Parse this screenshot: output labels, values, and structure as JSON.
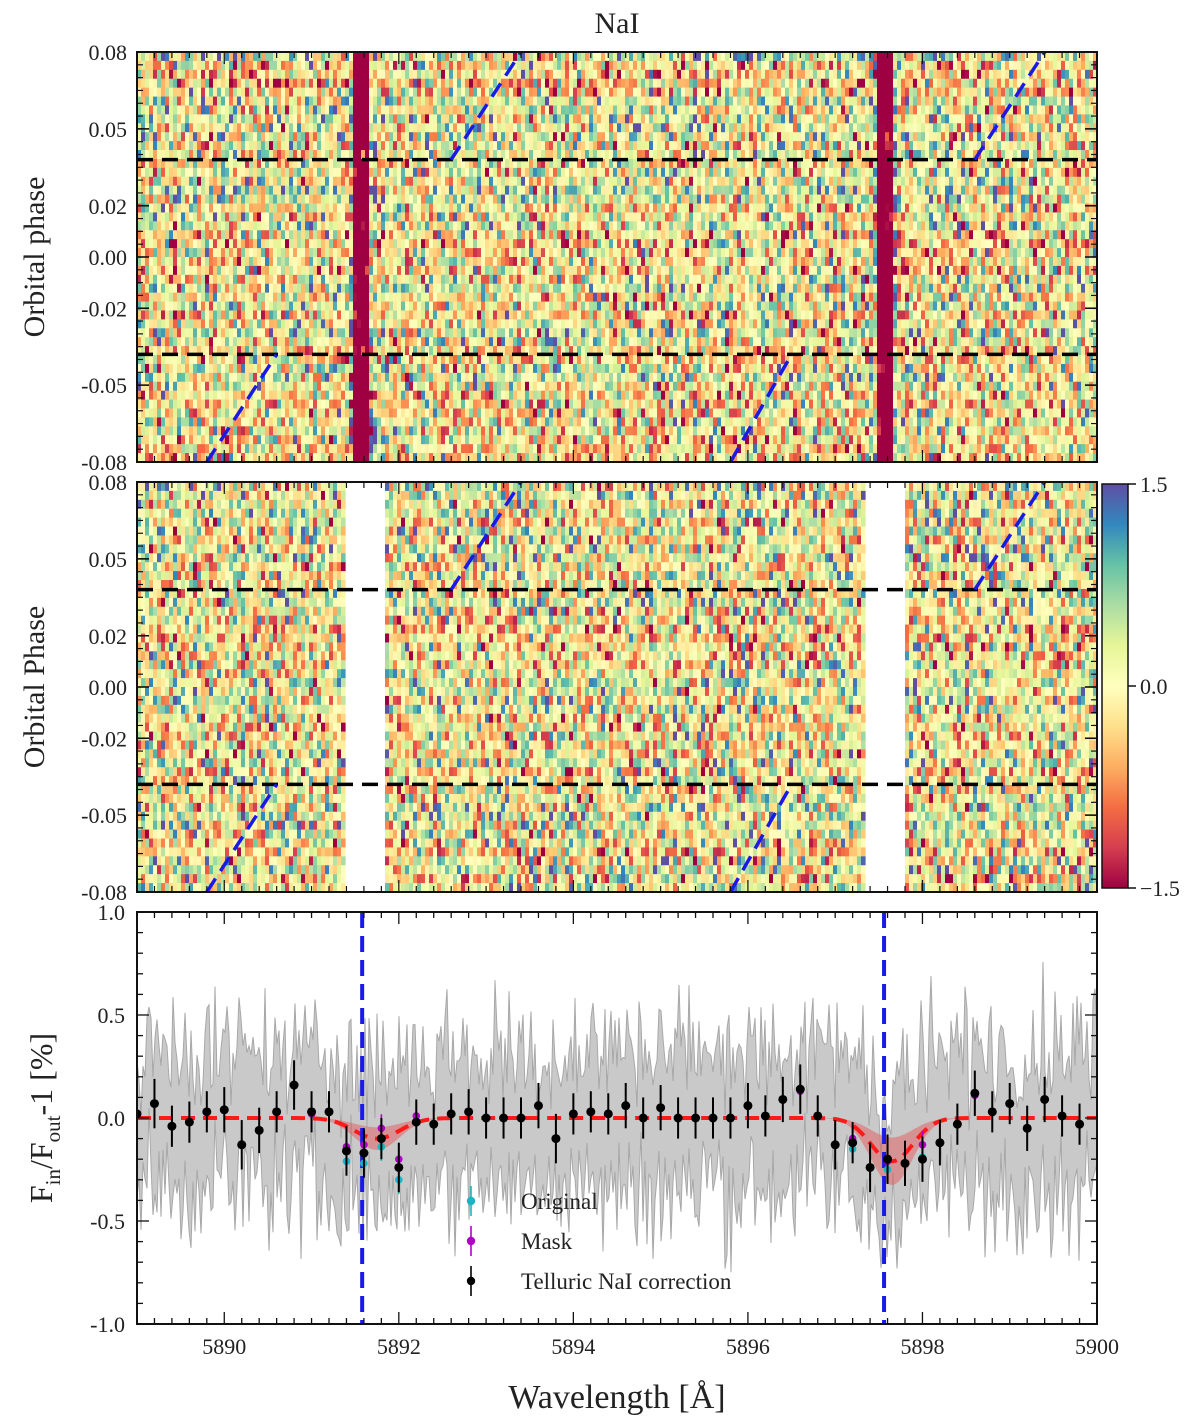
{
  "figure": {
    "title": "NaI"
  },
  "chart_data": [
    {
      "type": "heatmap",
      "panel": "top",
      "ylabel": "Orbital phase",
      "xlim": [
        5889,
        5900
      ],
      "ylim": [
        -0.08,
        0.08
      ],
      "yticks": [
        0.08,
        0.05,
        0.02,
        0.0,
        -0.02,
        -0.05,
        -0.08
      ],
      "ytick_labels": [
        "0.08",
        "0.05",
        "0.02",
        "0.00",
        "-0.02",
        "-0.05",
        "-0.08"
      ],
      "transit_limits": [
        0.038,
        -0.038
      ],
      "absorption_lines": [
        5891.58,
        5897.56
      ],
      "planet_trace_segments": [
        {
          "x": [
            5889.8,
            5890.6
          ],
          "y": [
            -0.08,
            -0.038
          ]
        },
        {
          "x": [
            5892.6,
            5893.4
          ],
          "y": [
            0.038,
            0.08
          ]
        },
        {
          "x": [
            5895.8,
            5896.5
          ],
          "y": [
            -0.08,
            -0.038
          ]
        },
        {
          "x": [
            5898.6,
            5899.4
          ],
          "y": [
            0.038,
            0.08
          ]
        }
      ],
      "color_range": [
        -1.5,
        1.5
      ]
    },
    {
      "type": "heatmap",
      "panel": "middle",
      "ylabel": "Orbital Phase",
      "xlim": [
        5889,
        5900
      ],
      "ylim": [
        -0.08,
        0.08
      ],
      "yticks": [
        0.08,
        0.05,
        0.02,
        0.0,
        -0.02,
        -0.05,
        -0.08
      ],
      "ytick_labels": [
        "0.08",
        "0.05",
        "0.02",
        "0.00",
        "-0.02",
        "-0.05",
        "-0.08"
      ],
      "transit_limits": [
        0.038,
        -0.038
      ],
      "masked_ranges": [
        [
          5891.4,
          5891.85
        ],
        [
          5897.35,
          5897.8
        ]
      ],
      "planet_trace_segments": [
        {
          "x": [
            5889.8,
            5890.6
          ],
          "y": [
            -0.08,
            -0.038
          ]
        },
        {
          "x": [
            5892.6,
            5893.4
          ],
          "y": [
            0.038,
            0.08
          ]
        },
        {
          "x": [
            5895.8,
            5896.5
          ],
          "y": [
            -0.08,
            -0.038
          ]
        },
        {
          "x": [
            5898.6,
            5899.4
          ],
          "y": [
            0.038,
            0.08
          ]
        }
      ],
      "colorbar": {
        "range": [
          -1.5,
          1.5
        ],
        "ticks": [
          1.5,
          0.0,
          -1.5
        ],
        "tick_labels": [
          "1.5",
          "0.0",
          "−1.5"
        ],
        "colors": [
          "#9e0142",
          "#d53e4f",
          "#f46d43",
          "#fdae61",
          "#fee08b",
          "#ffffbf",
          "#e6f598",
          "#abdda4",
          "#66c2a5",
          "#3288bd",
          "#5e4fa2"
        ]
      }
    },
    {
      "type": "scatter",
      "panel": "bottom",
      "xlabel": "Wavelength [Å]",
      "ylabel_main": "F",
      "ylabel_sub1": "in",
      "ylabel_mid": "/F",
      "ylabel_sub2": "out",
      "ylabel_tail": "-1 [%]",
      "xlim": [
        5889,
        5900
      ],
      "ylim": [
        -1.0,
        1.0
      ],
      "xticks": [
        5890,
        5892,
        5894,
        5896,
        5898,
        5900
      ],
      "xtick_labels": [
        "5890",
        "5892",
        "5894",
        "5896",
        "5898",
        "5900"
      ],
      "yticks": [
        1.0,
        0.5,
        0.0,
        -0.5,
        -1.0
      ],
      "ytick_labels": [
        "1.0",
        "0.5",
        "0.0",
        "-0.5",
        "-1.0"
      ],
      "vlines": [
        5891.58,
        5897.56
      ],
      "model": {
        "centers": [
          5891.75,
          5897.65
        ],
        "depths": [
          0.1,
          0.21
        ],
        "sigmas": [
          0.26,
          0.24
        ],
        "band_scale": 0.55
      },
      "series": [
        {
          "name": "Telluric NaI correction",
          "color": "#000000",
          "x": [
            5889.0,
            5889.2,
            5889.4,
            5889.6,
            5889.8,
            5890.0,
            5890.2,
            5890.4,
            5890.6,
            5890.8,
            5891.0,
            5891.2,
            5891.4,
            5891.6,
            5891.8,
            5892.0,
            5892.2,
            5892.4,
            5892.6,
            5892.8,
            5893.0,
            5893.2,
            5893.4,
            5893.6,
            5893.8,
            5894.0,
            5894.2,
            5894.4,
            5894.6,
            5894.8,
            5895.0,
            5895.2,
            5895.4,
            5895.6,
            5895.8,
            5896.0,
            5896.2,
            5896.4,
            5896.6,
            5896.8,
            5897.0,
            5897.2,
            5897.4,
            5897.6,
            5897.8,
            5898.0,
            5898.2,
            5898.4,
            5898.6,
            5898.8,
            5899.0,
            5899.2,
            5899.4,
            5899.6,
            5899.8
          ],
          "y": [
            0.02,
            0.07,
            -0.04,
            -0.02,
            0.03,
            0.04,
            -0.13,
            -0.06,
            0.03,
            0.16,
            0.03,
            0.03,
            -0.16,
            -0.17,
            -0.1,
            -0.24,
            -0.02,
            -0.03,
            0.02,
            0.03,
            0.0,
            0.0,
            0.0,
            0.06,
            -0.1,
            0.02,
            0.03,
            0.02,
            0.06,
            0.0,
            0.05,
            0.0,
            0.0,
            0.0,
            0.0,
            0.06,
            0.01,
            0.09,
            0.14,
            0.01,
            -0.13,
            -0.12,
            -0.24,
            -0.2,
            -0.22,
            -0.2,
            -0.12,
            -0.03,
            0.12,
            0.03,
            0.07,
            -0.05,
            0.09,
            0.01,
            -0.03
          ],
          "yerr": [
            0.1,
            0.12,
            0.1,
            0.1,
            0.1,
            0.11,
            0.12,
            0.11,
            0.1,
            0.12,
            0.1,
            0.1,
            0.12,
            0.12,
            0.1,
            0.12,
            0.11,
            0.1,
            0.1,
            0.11,
            0.1,
            0.1,
            0.1,
            0.11,
            0.12,
            0.1,
            0.1,
            0.1,
            0.11,
            0.1,
            0.11,
            0.1,
            0.1,
            0.1,
            0.1,
            0.11,
            0.1,
            0.11,
            0.12,
            0.1,
            0.12,
            0.1,
            0.12,
            0.12,
            0.11,
            0.11,
            0.11,
            0.1,
            0.11,
            0.1,
            0.1,
            0.11,
            0.11,
            0.1,
            0.1
          ]
        },
        {
          "name": "Mask",
          "color": "#b000c8",
          "x": [
            5891.0,
            5891.4,
            5891.6,
            5891.8,
            5892.0,
            5892.2,
            5896.6,
            5897.2,
            5897.6,
            5898.0,
            5898.6
          ],
          "y": [
            0.02,
            -0.14,
            -0.13,
            -0.05,
            -0.2,
            0.01,
            0.13,
            -0.1,
            -0.21,
            -0.13,
            0.11
          ]
        },
        {
          "name": "Original",
          "color": "#19b5c4",
          "x": [
            5891.4,
            5891.6,
            5891.8,
            5892.0,
            5897.2,
            5897.6,
            5898.0
          ],
          "y": [
            -0.21,
            -0.22,
            -0.14,
            -0.3,
            -0.15,
            -0.25,
            -0.19
          ]
        }
      ],
      "legend": {
        "position": "lower-center",
        "entries": [
          "Original",
          "Mask",
          "Telluric NaI correction"
        ]
      }
    }
  ]
}
